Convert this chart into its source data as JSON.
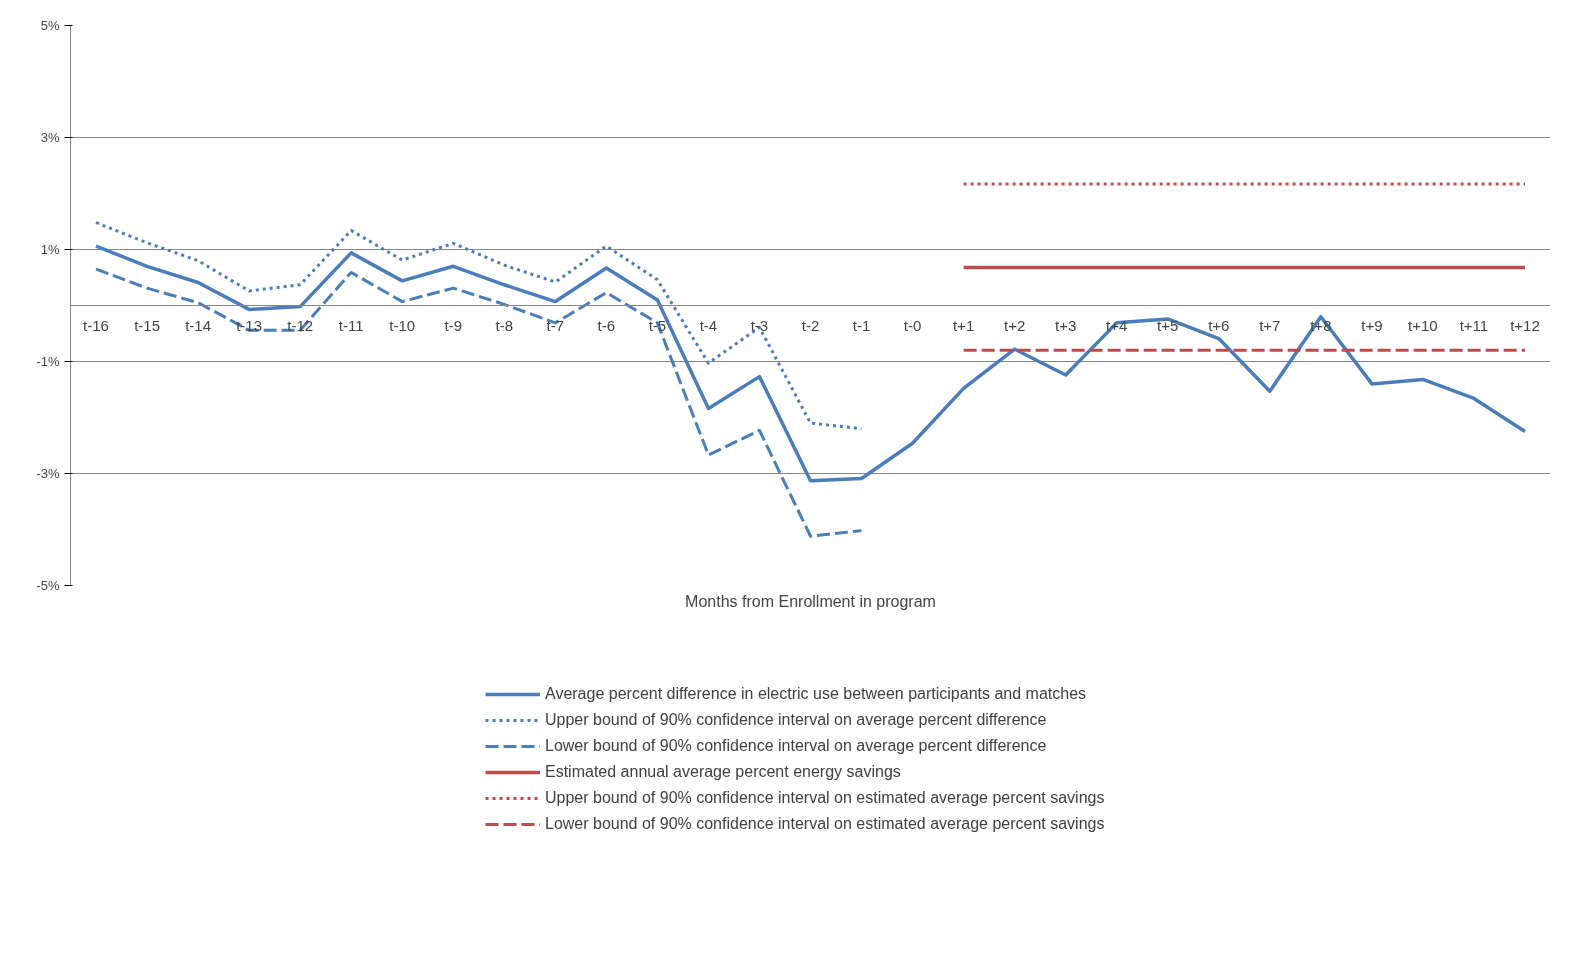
{
  "chart_data": {
    "type": "line",
    "xlabel": "Months from Enrollment in program",
    "categories": [
      "t-16",
      "t-15",
      "t-14",
      "t-13",
      "t-12",
      "t-11",
      "t-10",
      "t-9",
      "t-8",
      "t-7",
      "t-6",
      "t-5",
      "t-4",
      "t-3",
      "t-2",
      "t-1",
      "t-0",
      "t+1",
      "t+2",
      "t+3",
      "t+4",
      "t+5",
      "t+6",
      "t+7",
      "t+8",
      "t+9",
      "t+10",
      "t+11",
      "t+12"
    ],
    "ylim": [
      -5,
      5
    ],
    "yticks": [
      {
        "value": 5,
        "label": "5%"
      },
      {
        "value": 3,
        "label": "3%"
      },
      {
        "value": 1,
        "label": "1%"
      },
      {
        "value": -1,
        "label": "-1%"
      },
      {
        "value": -3,
        "label": "-3%"
      },
      {
        "value": -5,
        "label": "-5%"
      }
    ],
    "grid": "y",
    "legend": "bottom",
    "marker": "none",
    "series": [
      {
        "name": "Average percent difference in electric use between participants and matches",
        "color": "#4a7ebb",
        "line_style": "solid",
        "values": [
          1.06,
          0.7,
          0.41,
          -0.07,
          -0.02,
          0.94,
          0.44,
          0.7,
          0.37,
          0.07,
          0.67,
          0.1,
          -1.84,
          -1.27,
          -3.13,
          -3.09,
          -2.46,
          -1.48,
          -0.78,
          -1.24,
          -0.31,
          -0.24,
          -0.59,
          -1.53,
          -0.2,
          -1.4,
          -1.32,
          -1.66,
          -2.25
        ]
      },
      {
        "name": "Upper bound of 90% confidence interval on average percent difference",
        "color": "#4a7ebb",
        "line_style": "dotted",
        "values": [
          1.48,
          1.12,
          0.8,
          0.26,
          0.37,
          1.34,
          0.81,
          1.11,
          0.72,
          0.42,
          1.06,
          0.46,
          -1.03,
          -0.39,
          -2.1,
          -2.2,
          null,
          null,
          null,
          null,
          null,
          null,
          null,
          null,
          null,
          null,
          null,
          null,
          null
        ]
      },
      {
        "name": "Lower bound of 90% confidence interval on average percent difference",
        "color": "#4a7ebb",
        "line_style": "dashed",
        "values": [
          0.65,
          0.31,
          0.05,
          -0.44,
          -0.44,
          0.59,
          0.07,
          0.31,
          0.02,
          -0.31,
          0.23,
          -0.31,
          -2.67,
          -2.23,
          -4.12,
          -4.02,
          null,
          null,
          null,
          null,
          null,
          null,
          null,
          null,
          null,
          null,
          null,
          null,
          null
        ]
      },
      {
        "name": "Estimated annual average percent energy savings",
        "color": "#be4b48",
        "line_style": "solid",
        "values": [
          null,
          null,
          null,
          null,
          null,
          null,
          null,
          null,
          null,
          null,
          null,
          null,
          null,
          null,
          null,
          null,
          null,
          0.68,
          0.68,
          0.68,
          0.68,
          0.68,
          0.68,
          0.68,
          0.68,
          0.68,
          0.68,
          0.68,
          0.68
        ]
      },
      {
        "name": "Upper bound of 90% confidence interval on estimated average percent savings",
        "color": "#be4b48",
        "line_style": "dotted",
        "values": [
          null,
          null,
          null,
          null,
          null,
          null,
          null,
          null,
          null,
          null,
          null,
          null,
          null,
          null,
          null,
          null,
          null,
          2.17,
          2.17,
          2.17,
          2.17,
          2.17,
          2.17,
          2.17,
          2.17,
          2.17,
          2.17,
          2.17,
          2.17
        ]
      },
      {
        "name": "Lower bound of 90% confidence interval on estimated average percent savings",
        "color": "#be4b48",
        "line_style": "dashed",
        "values": [
          null,
          null,
          null,
          null,
          null,
          null,
          null,
          null,
          null,
          null,
          null,
          null,
          null,
          null,
          null,
          null,
          null,
          -0.8,
          -0.8,
          -0.8,
          -0.8,
          -0.8,
          -0.8,
          -0.8,
          -0.8,
          -0.8,
          -0.8,
          -0.8,
          -0.8
        ]
      }
    ]
  }
}
